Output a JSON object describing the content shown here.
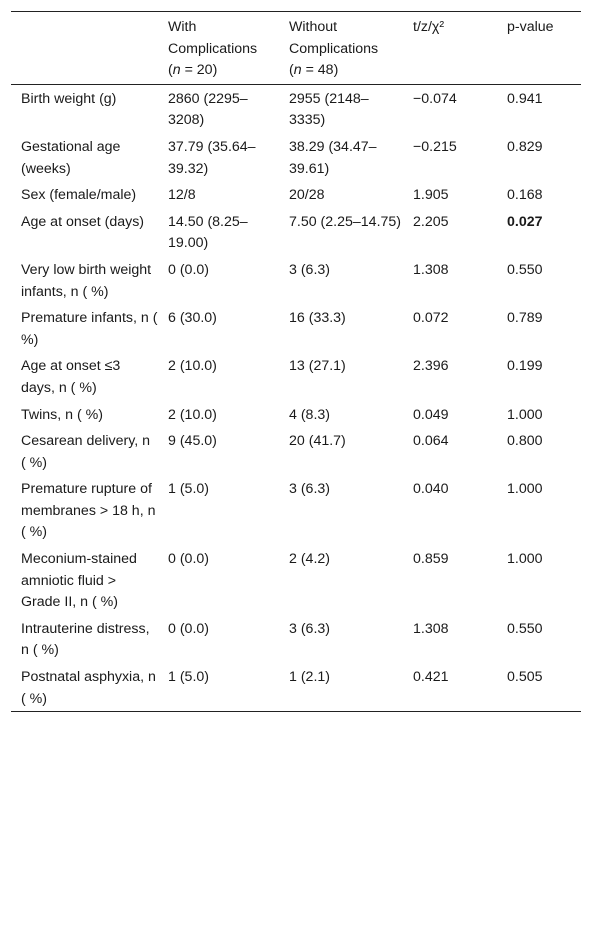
{
  "header": {
    "col0": "",
    "col1": {
      "line1": "With",
      "line2": "Complications",
      "open": "(",
      "n": "n",
      "rest": " = 20)"
    },
    "col2": {
      "line1": "Without",
      "line2": "Complications",
      "open": "(",
      "n": "n",
      "rest": " = 48)"
    },
    "col3": "t/z/χ²",
    "col4": "p-value"
  },
  "rows": [
    {
      "variable": "Birth weight (g)",
      "with": "2860 (2295–3208)",
      "without": "2955 (2148–3335)",
      "stat": "−0.074",
      "p": "0.941",
      "significant": false
    },
    {
      "variable": "Gestational age (weeks)",
      "with": "37.79 (35.64–39.32)",
      "without": "38.29 (34.47–39.61)",
      "stat": "−0.215",
      "p": "0.829",
      "significant": false
    },
    {
      "variable": "Sex (female/male)",
      "with": "12/8",
      "without": "20/28",
      "stat": "1.905",
      "p": "0.168",
      "significant": false
    },
    {
      "variable": "Age at onset (days)",
      "with": "14.50 (8.25–19.00)",
      "without": "7.50 (2.25–14.75)",
      "stat": "2.205",
      "p": "0.027",
      "significant": true
    },
    {
      "variable": "Very low birth weight infants, n ( %)",
      "with": "0 (0.0)",
      "without": "3 (6.3)",
      "stat": "1.308",
      "p": "0.550",
      "significant": false
    },
    {
      "variable": "Premature infants, n ( %)",
      "with": "6 (30.0)",
      "without": "16 (33.3)",
      "stat": "0.072",
      "p": "0.789",
      "significant": false
    },
    {
      "variable": "Age at onset ≤3 days, n ( %)",
      "with": "2 (10.0)",
      "without": "13 (27.1)",
      "stat": "2.396",
      "p": "0.199",
      "significant": false
    },
    {
      "variable": "Twins, n ( %)",
      "with": "2 (10.0)",
      "without": "4 (8.3)",
      "stat": "0.049",
      "p": "1.000",
      "significant": false
    },
    {
      "variable": "Cesarean delivery, n ( %)",
      "with": "9 (45.0)",
      "without": "20 (41.7)",
      "stat": "0.064",
      "p": "0.800",
      "significant": false
    },
    {
      "variable": "Premature rupture of membranes > 18 h, n ( %)",
      "with": "1 (5.0)",
      "without": "3 (6.3)",
      "stat": "0.040",
      "p": "1.000",
      "significant": false
    },
    {
      "variable": "Meconium-stained amniotic fluid > Grade II, n ( %)",
      "with": "0 (0.0)",
      "without": "2 (4.2)",
      "stat": "0.859",
      "p": "1.000",
      "significant": false
    },
    {
      "variable": "Intrauterine distress, n ( %)",
      "with": "0 (0.0)",
      "without": "3 (6.3)",
      "stat": "1.308",
      "p": "0.550",
      "significant": false
    },
    {
      "variable": "Postnatal asphyxia, n ( %)",
      "with": "1 (5.0)",
      "without": "1 (2.1)",
      "stat": "0.421",
      "p": "0.505",
      "significant": false
    }
  ]
}
